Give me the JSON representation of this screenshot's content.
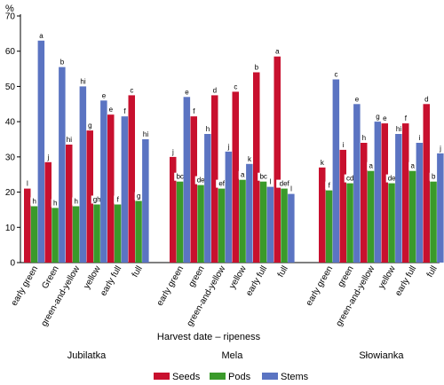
{
  "chart_data": {
    "type": "bar",
    "ylabel": "%",
    "xlabel": "Harvest date – ripeness",
    "ylim": [
      0,
      70
    ],
    "yticks": [
      0,
      10,
      20,
      30,
      40,
      50,
      60,
      70
    ],
    "grid": false,
    "legend_position": "bottom",
    "colors": {
      "Seeds": "#c8102e",
      "Pods": "#3a9a2a",
      "Stems": "#5b74c2"
    },
    "groups": [
      {
        "name": "Jubilatka",
        "categories": [
          "early green",
          "Green",
          "green-and-yellow",
          "yellow",
          "early full",
          "full"
        ],
        "series": [
          {
            "name": "Seeds",
            "values": [
              21,
              28.5,
              33.5,
              37.5,
              42,
              47.5
            ],
            "labels": [
              "l",
              "j",
              "hi",
              "g",
              "e",
              "c"
            ]
          },
          {
            "name": "Pods",
            "values": [
              16,
              15.5,
              16,
              16.5,
              16.5,
              17.5
            ],
            "labels": [
              "h",
              "h",
              "h",
              "gh",
              "f",
              "g"
            ]
          },
          {
            "name": "Stems",
            "values": [
              63,
              55.5,
              50,
              46,
              41.5,
              35
            ],
            "labels": [
              "a",
              "b",
              "hi",
              "e",
              "f",
              "hi"
            ]
          }
        ]
      },
      {
        "name": "Mela",
        "categories": [
          "early green",
          "green",
          "green-and-yellow",
          "yellow",
          "early full",
          "full"
        ],
        "series": [
          {
            "name": "Seeds",
            "values": [
              30,
              41.5,
              47.5,
              48.5,
              54,
              58.5
            ],
            "labels": [
              "j",
              "f",
              "d",
              "c",
              "b",
              "a"
            ]
          },
          {
            "name": "Pods",
            "values": [
              23,
              22,
              21,
              23.5,
              23,
              21
            ],
            "labels": [
              "bc",
              "de",
              "ef",
              "a",
              "bc",
              "def"
            ]
          },
          {
            "name": "Stems",
            "values": [
              47,
              36.5,
              31.5,
              28,
              21.5,
              19.5
            ],
            "labels": [
              "e",
              "h",
              "j",
              "k",
              "l",
              "l"
            ]
          }
        ]
      },
      {
        "name": "Słowianka",
        "categories": [
          "early green",
          "green",
          "green-and-yellow",
          "yellow",
          "early full",
          "full"
        ],
        "series": [
          {
            "name": "Seeds",
            "values": [
              27,
              32,
              34,
              39.5,
              39.5,
              45
            ],
            "labels": [
              "k",
              "i",
              "h",
              "e",
              "f",
              "d"
            ]
          },
          {
            "name": "Pods",
            "values": [
              20.5,
              22.5,
              26,
              22.5,
              26,
              23
            ],
            "labels": [
              "f",
              "cd",
              "a",
              "de",
              "a",
              "b"
            ]
          },
          {
            "name": "Stems",
            "values": [
              52,
              45,
              40,
              36.5,
              34,
              31
            ],
            "labels": [
              "c",
              "e",
              "g",
              "hi",
              "i",
              "j"
            ]
          }
        ]
      }
    ],
    "legend": [
      "Seeds",
      "Pods",
      "Stems"
    ]
  }
}
